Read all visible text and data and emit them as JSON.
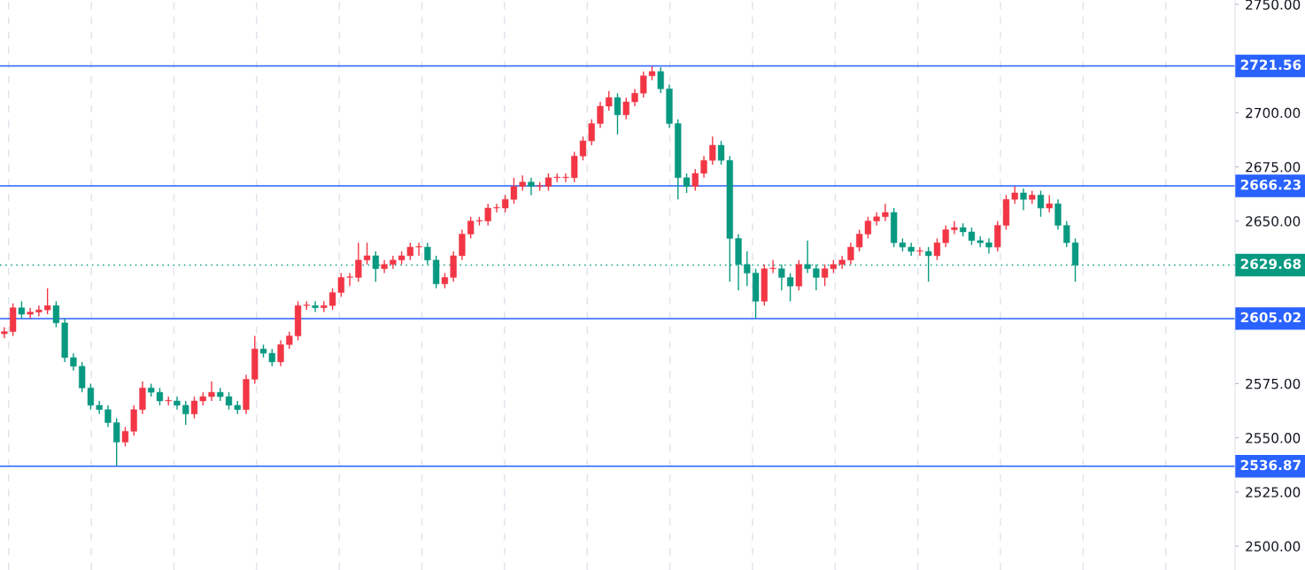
{
  "chart_data": {
    "type": "candlestick",
    "categories": [
      null,
      null,
      null,
      null,
      null,
      null,
      null,
      null,
      null,
      null,
      null,
      null,
      null,
      null,
      null,
      null,
      null,
      null,
      null,
      null,
      null,
      null,
      null,
      null,
      null,
      null,
      null,
      null,
      null,
      null,
      null,
      null,
      null,
      null,
      null,
      null,
      null,
      null,
      null,
      null,
      null,
      null,
      null,
      null,
      null,
      null,
      null,
      null,
      null,
      null,
      null,
      null,
      null,
      null,
      null,
      null,
      null,
      null,
      null,
      null,
      null,
      null,
      null,
      null,
      null,
      null,
      null,
      null,
      null,
      null,
      null,
      null,
      null,
      null,
      null,
      null,
      null,
      null,
      null,
      null,
      null,
      null,
      null,
      null,
      null,
      null,
      null,
      null,
      null,
      null,
      null,
      null,
      null,
      null,
      null,
      null,
      null,
      null,
      null,
      null,
      null,
      null,
      null,
      null,
      null,
      null,
      null,
      null,
      null,
      null,
      null,
      null,
      null,
      null,
      null,
      null,
      null,
      null,
      null,
      null,
      null,
      null,
      null,
      null,
      null,
      null,
      null,
      null,
      null,
      null,
      null,
      null,
      null,
      null,
      null,
      null,
      null,
      null,
      null,
      null,
      null,
      null,
      null
    ],
    "ohlc": [
      [
        2598,
        2601,
        2596,
        2599
      ],
      [
        2599,
        2612,
        2597,
        2610
      ],
      [
        2610,
        2613,
        2605,
        2607
      ],
      [
        2607,
        2610,
        2605,
        2608
      ],
      [
        2608,
        2611,
        2606,
        2609
      ],
      [
        2609,
        2619,
        2607,
        2611
      ],
      [
        2611,
        2613,
        2601,
        2603
      ],
      [
        2603,
        2605,
        2585,
        2587
      ],
      [
        2587,
        2589,
        2581,
        2583
      ],
      [
        2583,
        2585,
        2571,
        2573
      ],
      [
        2573,
        2575,
        2563,
        2565
      ],
      [
        2565,
        2567,
        2561,
        2563
      ],
      [
        2563,
        2565,
        2555,
        2557
      ],
      [
        2557,
        2559,
        2537,
        2548
      ],
      [
        2548,
        2555,
        2546,
        2553
      ],
      [
        2553,
        2565,
        2551,
        2563
      ],
      [
        2563,
        2576,
        2561,
        2573
      ],
      [
        2573,
        2575,
        2569,
        2571
      ],
      [
        2571,
        2573,
        2565,
        2567
      ],
      [
        2567,
        2569,
        2565,
        2567
      ],
      [
        2567,
        2569,
        2563,
        2565
      ],
      [
        2565,
        2567,
        2556,
        2561
      ],
      [
        2561,
        2569,
        2559,
        2567
      ],
      [
        2567,
        2571,
        2565,
        2569
      ],
      [
        2569,
        2576,
        2567,
        2571
      ],
      [
        2571,
        2573,
        2567,
        2569
      ],
      [
        2569,
        2571,
        2563,
        2565
      ],
      [
        2565,
        2567,
        2561,
        2563
      ],
      [
        2563,
        2579,
        2561,
        2577
      ],
      [
        2577,
        2597,
        2575,
        2591
      ],
      [
        2591,
        2593,
        2587,
        2589
      ],
      [
        2589,
        2591,
        2583,
        2585
      ],
      [
        2585,
        2595,
        2583,
        2593
      ],
      [
        2593,
        2599,
        2591,
        2597
      ],
      [
        2597,
        2613,
        2595,
        2611
      ],
      [
        2611,
        2613,
        2609,
        2611
      ],
      [
        2611,
        2613,
        2608,
        2610
      ],
      [
        2610,
        2613,
        2608,
        2611
      ],
      [
        2611,
        2619,
        2609,
        2617
      ],
      [
        2617,
        2626,
        2615,
        2624
      ],
      [
        2624,
        2626,
        2620,
        2624
      ],
      [
        2624,
        2640,
        2622,
        2632
      ],
      [
        2632,
        2640,
        2630,
        2634
      ],
      [
        2634,
        2636,
        2622,
        2628
      ],
      [
        2628,
        2632,
        2626,
        2630
      ],
      [
        2630,
        2634,
        2628,
        2632
      ],
      [
        2632,
        2636,
        2630,
        2634
      ],
      [
        2634,
        2640,
        2632,
        2638
      ],
      [
        2638,
        2640,
        2634,
        2638
      ],
      [
        2638,
        2640,
        2630,
        2632
      ],
      [
        2632,
        2634,
        2619,
        2621
      ],
      [
        2621,
        2626,
        2619,
        2624
      ],
      [
        2624,
        2636,
        2622,
        2634
      ],
      [
        2634,
        2646,
        2632,
        2644
      ],
      [
        2644,
        2652,
        2642,
        2650
      ],
      [
        2650,
        2652,
        2648,
        2650
      ],
      [
        2650,
        2658,
        2648,
        2656
      ],
      [
        2656,
        2658,
        2654,
        2656
      ],
      [
        2656,
        2662,
        2654,
        2660
      ],
      [
        2660,
        2670,
        2658,
        2666
      ],
      [
        2666,
        2671,
        2664,
        2668
      ],
      [
        2668,
        2670,
        2662,
        2666
      ],
      [
        2666,
        2668,
        2664,
        2666
      ],
      [
        2666,
        2672,
        2664,
        2670
      ],
      [
        2670,
        2672,
        2668,
        2670
      ],
      [
        2670,
        2672,
        2668,
        2670
      ],
      [
        2670,
        2682,
        2668,
        2680
      ],
      [
        2680,
        2689,
        2678,
        2687
      ],
      [
        2687,
        2697,
        2685,
        2695
      ],
      [
        2695,
        2705,
        2693,
        2703
      ],
      [
        2703,
        2710,
        2701,
        2707
      ],
      [
        2707,
        2709,
        2690,
        2699
      ],
      [
        2699,
        2707,
        2697,
        2705
      ],
      [
        2705,
        2711,
        2703,
        2709
      ],
      [
        2709,
        2719,
        2707,
        2717
      ],
      [
        2717,
        2721.5,
        2715,
        2719
      ],
      [
        2719,
        2721,
        2709,
        2711
      ],
      [
        2711,
        2713,
        2693,
        2695
      ],
      [
        2695,
        2697,
        2660,
        2670
      ],
      [
        2670,
        2672,
        2663,
        2666
      ],
      [
        2666,
        2674,
        2664,
        2672
      ],
      [
        2672,
        2680,
        2670,
        2678
      ],
      [
        2678,
        2689,
        2676,
        2685
      ],
      [
        2685,
        2687,
        2676,
        2678
      ],
      [
        2678,
        2680,
        2622,
        2642
      ],
      [
        2642,
        2644,
        2618,
        2630
      ],
      [
        2630,
        2636,
        2620,
        2626
      ],
      [
        2626,
        2628,
        2605,
        2613
      ],
      [
        2613,
        2630,
        2611,
        2628
      ],
      [
        2628,
        2632,
        2626,
        2628
      ],
      [
        2628,
        2630,
        2618,
        2624
      ],
      [
        2624,
        2626,
        2613,
        2620
      ],
      [
        2620,
        2632,
        2618,
        2630
      ],
      [
        2630,
        2641,
        2626,
        2628
      ],
      [
        2628,
        2630,
        2618,
        2624
      ],
      [
        2624,
        2630,
        2620,
        2628
      ],
      [
        2628,
        2632,
        2626,
        2630
      ],
      [
        2630,
        2634,
        2628,
        2632
      ],
      [
        2632,
        2640,
        2630,
        2638
      ],
      [
        2638,
        2646,
        2636,
        2644
      ],
      [
        2644,
        2652,
        2642,
        2650
      ],
      [
        2650,
        2654,
        2648,
        2652
      ],
      [
        2652,
        2658,
        2650,
        2654
      ],
      [
        2654,
        2656,
        2638,
        2640
      ],
      [
        2640,
        2642,
        2636,
        2638
      ],
      [
        2638,
        2640,
        2634,
        2636
      ],
      [
        2636,
        2638,
        2634,
        2636
      ],
      [
        2636,
        2638,
        2622,
        2634
      ],
      [
        2634,
        2642,
        2632,
        2640
      ],
      [
        2640,
        2648,
        2638,
        2646
      ],
      [
        2646,
        2650,
        2644,
        2647
      ],
      [
        2647,
        2649,
        2643,
        2645
      ],
      [
        2645,
        2647,
        2639,
        2641
      ],
      [
        2641,
        2643,
        2638,
        2640
      ],
      [
        2640,
        2642,
        2635,
        2638
      ],
      [
        2638,
        2650,
        2636,
        2648
      ],
      [
        2648,
        2662,
        2646,
        2660
      ],
      [
        2660,
        2666,
        2658,
        2663
      ],
      [
        2663,
        2665,
        2655,
        2660
      ],
      [
        2660,
        2664,
        2658,
        2662
      ],
      [
        2662,
        2664,
        2652,
        2656
      ],
      [
        2656,
        2662,
        2654,
        2658
      ],
      [
        2658,
        2660,
        2646,
        2648
      ],
      [
        2648,
        2650,
        2638,
        2640
      ],
      [
        2640,
        2642,
        2622,
        2629.68
      ],
      null,
      null,
      null,
      null,
      null,
      null,
      null,
      null,
      null,
      null,
      null,
      null,
      null,
      null,
      null,
      null,
      null,
      null
    ],
    "colors": [
      "#f23645",
      "#f23645",
      "#089981",
      "#f23645",
      "#f23645",
      "#f23645",
      "#089981",
      "#089981",
      "#089981",
      "#089981",
      "#089981",
      "#089981",
      "#089981",
      "#089981",
      "#f23645",
      "#f23645",
      "#f23645",
      "#089981",
      "#089981",
      "#f23645",
      "#089981",
      "#089981",
      "#f23645",
      "#f23645",
      "#f23645",
      "#089981",
      "#089981",
      "#089981",
      "#f23645",
      "#f23645",
      "#089981",
      "#089981",
      "#f23645",
      "#f23645",
      "#f23645",
      "#f23645",
      "#089981",
      "#f23645",
      "#f23645",
      "#f23645",
      "#f23645",
      "#f23645",
      "#f23645",
      "#089981",
      "#f23645",
      "#f23645",
      "#f23645",
      "#f23645",
      "#f23645",
      "#089981",
      "#089981",
      "#f23645",
      "#f23645",
      "#f23645",
      "#f23645",
      "#f23645",
      "#f23645",
      "#f23645",
      "#f23645",
      "#f23645",
      "#f23645",
      "#089981",
      "#f23645",
      "#f23645",
      "#f23645",
      "#f23645",
      "#f23645",
      "#f23645",
      "#f23645",
      "#f23645",
      "#f23645",
      "#089981",
      "#f23645",
      "#f23645",
      "#f23645",
      "#f23645",
      "#089981",
      "#089981",
      "#089981",
      "#089981",
      "#f23645",
      "#f23645",
      "#f23645",
      "#089981",
      "#089981",
      "#089981",
      "#089981",
      "#089981",
      "#f23645",
      "#f23645",
      "#089981",
      "#089981",
      "#f23645",
      "#089981",
      "#089981",
      "#f23645",
      "#f23645",
      "#f23645",
      "#f23645",
      "#f23645",
      "#f23645",
      "#f23645",
      "#f23645",
      "#089981",
      "#089981",
      "#089981",
      "#f23645",
      "#089981",
      "#f23645",
      "#f23645",
      "#f23645",
      "#089981",
      "#089981",
      "#089981",
      "#089981",
      "#f23645",
      "#f23645",
      "#f23645",
      "#089981",
      "#f23645",
      "#089981",
      "#f23645",
      "#089981",
      "#089981",
      "#089981",
      null,
      null,
      null,
      null,
      null,
      null,
      null,
      null,
      null,
      null,
      null,
      null,
      null,
      null,
      null,
      null,
      null,
      null
    ],
    "ylim": [
      2489,
      2752
    ],
    "yticks": [
      {
        "value": 2500,
        "label": "2500.00"
      },
      {
        "value": 2525,
        "label": "2525.00"
      },
      {
        "value": 2550,
        "label": "2550.00"
      },
      {
        "value": 2575,
        "label": "2575.00"
      },
      {
        "value": 2600,
        "label": null
      },
      {
        "value": 2625,
        "label": null
      },
      {
        "value": 2650,
        "label": "2650.00"
      },
      {
        "value": 2675,
        "label": "2675.00"
      },
      {
        "value": 2700,
        "label": "2700.00"
      },
      {
        "value": 2725,
        "label": null
      },
      {
        "value": 2750,
        "label": "2750.00"
      }
    ],
    "ref_lines": [
      {
        "axis": "y",
        "value": 2721.56,
        "label": "2721.56",
        "color": "#2962ff",
        "line_style": "solid"
      },
      {
        "axis": "y",
        "value": 2666.23,
        "label": "2666.23",
        "color": "#2962ff",
        "line_style": "solid"
      },
      {
        "axis": "y",
        "value": 2605.02,
        "label": "2605.02",
        "color": "#2962ff",
        "line_style": "solid"
      },
      {
        "axis": "y",
        "value": 2536.87,
        "label": "2536.87",
        "color": "#2962ff",
        "line_style": "solid"
      },
      {
        "axis": "y",
        "value": 2629.68,
        "label": "2629.68",
        "color": "#089981",
        "line_style": "dotted"
      }
    ],
    "grid": "x",
    "tick_labels": "y"
  }
}
